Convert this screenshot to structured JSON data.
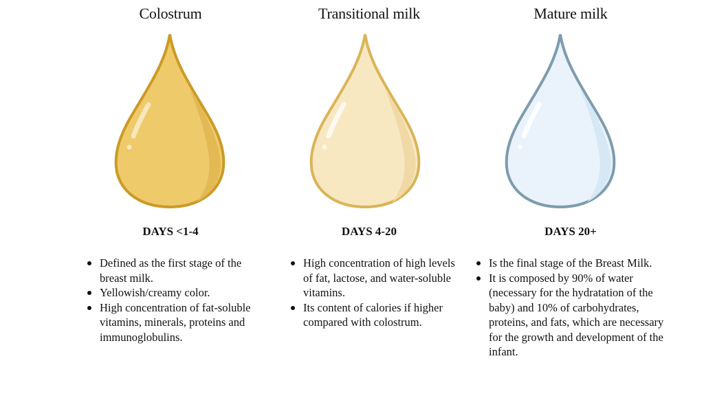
{
  "stages": [
    {
      "title": "Colostrum",
      "days": "DAYS <1-4",
      "facts": [
        "Defined as the first stage of the breast milk.",
        "Yellowish/creamy color.",
        "High concentration of fat-soluble vitamins, minerals, proteins and immunoglobulins."
      ],
      "colors": {
        "fill": "#efca6a",
        "shade": "#e2b953",
        "stroke": "#cc9a25"
      }
    },
    {
      "title": "Transitional milk",
      "days": "DAYS 4-20",
      "facts": [
        "High concentration of high levels of fat, lactose, and water-soluble vitamins.",
        "Its content of calories if higher compared with colostrum."
      ],
      "colors": {
        "fill": "#f8e8c2",
        "shade": "#f0d9a5",
        "stroke": "#dab457"
      }
    },
    {
      "title": "Mature milk",
      "days": "DAYS 20+",
      "facts": [
        "Is the final stage of the Breast Milk.",
        "It is composed by 90% of water (necessary for the hydratation of the baby) and 10% of carbohydrates, proteins, and fats, which are necessary for the growth and development of the infant."
      ],
      "colors": {
        "fill": "#eaf3fc",
        "shade": "#d6e8f6",
        "stroke": "#7e9cae"
      }
    }
  ]
}
